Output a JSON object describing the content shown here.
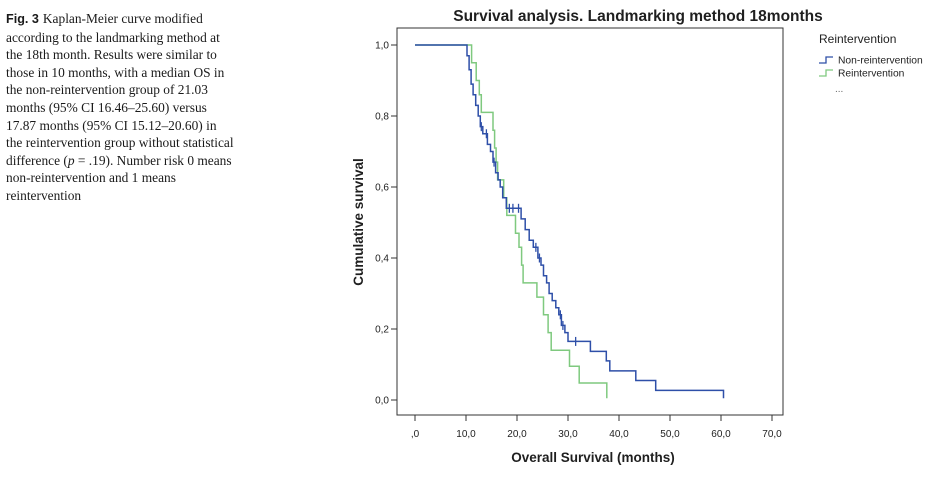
{
  "caption": {
    "fig_label": "Fig. 3",
    "text_before_p": "Kaplan-Meier curve modified according to the landmarking method at the 18th month. Results were similar to those in 10 months, with a median OS in the non-reintervention group of 21.03 months (95% CI 16.46–25.60) versus 17.87 months (95% CI 15.12–20.60) in the reintervention group without statistical difference (",
    "p_symbol": "p",
    "text_after_p": " = .19). Number risk 0 means non-reintervention and 1 means reintervention"
  },
  "chart_data": {
    "type": "line",
    "subtype": "kaplan-meier-step",
    "title": "Survival analysis. Landmarking method 18months",
    "xlabel": "Overall Survival (months)",
    "ylabel": "Cumulative survival",
    "xlim": [
      -4,
      71
    ],
    "ylim": [
      -0.05,
      1.05
    ],
    "x_ticks": [
      0,
      10,
      20,
      30,
      40,
      50,
      60,
      70
    ],
    "x_tick_labels": [
      ",0",
      "10,0",
      "20,0",
      "30,0",
      "40,0",
      "50,0",
      "60,0",
      "70,0"
    ],
    "y_ticks": [
      0,
      0.2,
      0.4,
      0.6,
      0.8,
      1.0
    ],
    "y_tick_labels": [
      "0,0",
      "0,2",
      "0,4",
      "0,6",
      "0,8",
      "1,0"
    ],
    "legend_title": "Reintervention",
    "legend_position": "top-right",
    "legend_extra": "...",
    "grid": false,
    "series": [
      {
        "name": "Non-reintervention",
        "color": "#2e4fa8",
        "steps": [
          [
            0,
            1.0
          ],
          [
            10.2,
            0.97
          ],
          [
            10.6,
            0.93
          ],
          [
            11.0,
            0.89
          ],
          [
            11.4,
            0.86
          ],
          [
            11.9,
            0.83
          ],
          [
            12.4,
            0.8
          ],
          [
            12.8,
            0.77
          ],
          [
            13.3,
            0.75
          ],
          [
            14.2,
            0.72
          ],
          [
            14.8,
            0.7
          ],
          [
            15.3,
            0.67
          ],
          [
            15.8,
            0.64
          ],
          [
            16.3,
            0.62
          ],
          [
            16.7,
            0.6
          ],
          [
            17.2,
            0.57
          ],
          [
            17.9,
            0.54
          ],
          [
            20.8,
            0.51
          ],
          [
            21.6,
            0.48
          ],
          [
            22.4,
            0.45
          ],
          [
            23.2,
            0.43
          ],
          [
            24.1,
            0.4
          ],
          [
            24.7,
            0.38
          ],
          [
            25.2,
            0.35
          ],
          [
            25.8,
            0.33
          ],
          [
            26.3,
            0.3
          ],
          [
            26.9,
            0.28
          ],
          [
            27.6,
            0.26
          ],
          [
            28.2,
            0.24
          ],
          [
            28.7,
            0.21
          ],
          [
            29.4,
            0.19
          ],
          [
            30.0,
            0.165
          ],
          [
            34.4,
            0.137
          ],
          [
            37.5,
            0.11
          ],
          [
            38.2,
            0.082
          ],
          [
            43.3,
            0.055
          ],
          [
            47.2,
            0.027
          ],
          [
            60.5,
            0.005
          ]
        ],
        "end_x": 60.5,
        "censored": [
          [
            13.0,
            0.77
          ],
          [
            14.0,
            0.75
          ],
          [
            15.5,
            0.67
          ],
          [
            18.5,
            0.54
          ],
          [
            19.2,
            0.54
          ],
          [
            20.3,
            0.54
          ],
          [
            23.7,
            0.43
          ],
          [
            24.4,
            0.4
          ],
          [
            28.5,
            0.24
          ],
          [
            29.0,
            0.21
          ],
          [
            31.5,
            0.165
          ]
        ]
      },
      {
        "name": "Reintervention",
        "color": "#7fc97f",
        "steps": [
          [
            0,
            1.0
          ],
          [
            11.1,
            0.95
          ],
          [
            12.0,
            0.9
          ],
          [
            12.6,
            0.86
          ],
          [
            13.0,
            0.81
          ],
          [
            15.3,
            0.76
          ],
          [
            15.6,
            0.71
          ],
          [
            15.9,
            0.67
          ],
          [
            16.2,
            0.62
          ],
          [
            17.4,
            0.57
          ],
          [
            18.0,
            0.52
          ],
          [
            19.7,
            0.47
          ],
          [
            20.4,
            0.43
          ],
          [
            20.9,
            0.38
          ],
          [
            21.2,
            0.33
          ],
          [
            23.9,
            0.29
          ],
          [
            25.2,
            0.24
          ],
          [
            26.1,
            0.19
          ],
          [
            26.7,
            0.14
          ],
          [
            30.3,
            0.095
          ],
          [
            32.2,
            0.048
          ],
          [
            37.6,
            0.005
          ]
        ],
        "end_x": 37.6,
        "censored": []
      }
    ]
  }
}
